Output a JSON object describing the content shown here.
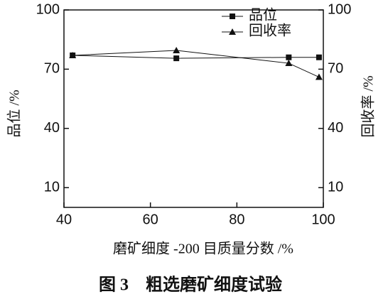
{
  "chart_data": {
    "type": "line",
    "caption": "图 3　粗选磨矿细度试验",
    "xlabel": "磨矿细度 -200 目质量分数 /%",
    "ylabel": "品位 /%",
    "y2label": "回收率 /%",
    "x": [
      42,
      66,
      92,
      99
    ],
    "series": [
      {
        "name": "品位",
        "color": "#111111",
        "marker": "square",
        "values": [
          77,
          75.5,
          76,
          76
        ]
      },
      {
        "name": "回收率",
        "color": "#111111",
        "marker": "triangle",
        "axis": "y2",
        "values": [
          77,
          79.5,
          73,
          66
        ]
      }
    ],
    "xlim": [
      40,
      100
    ],
    "xticks": [
      40,
      60,
      80,
      100
    ],
    "ylim": [
      0,
      100
    ],
    "yticks": [
      10,
      40,
      70,
      100
    ],
    "y2lim": [
      0,
      100
    ],
    "y2ticks": [
      10,
      40,
      70,
      100
    ],
    "legend": "top"
  }
}
